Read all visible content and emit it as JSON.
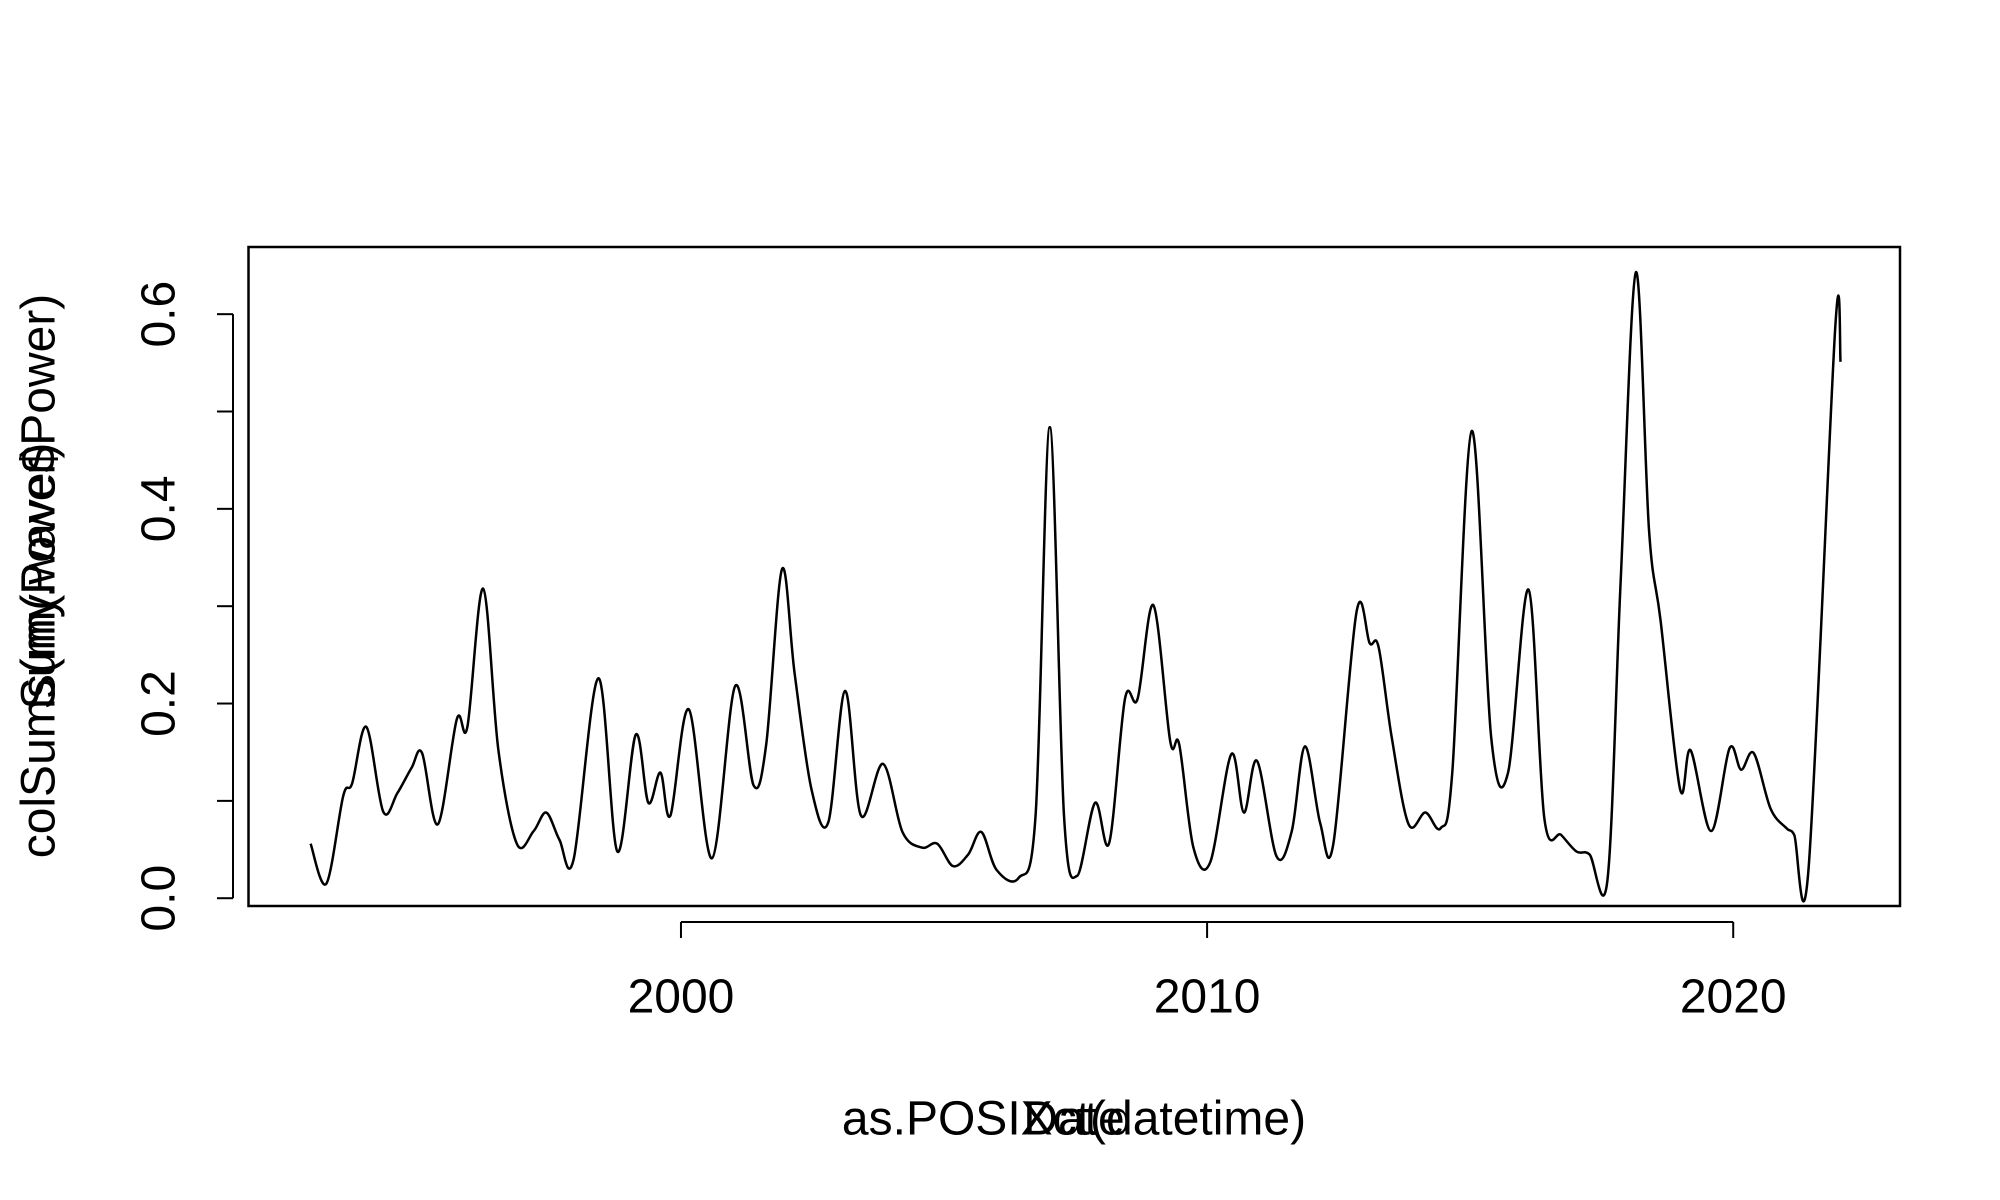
{
  "chart_data": {
    "type": "line",
    "x_labels": [
      "as.POSIXct(datetime)",
      "Date"
    ],
    "y_labels": [
      "colSums(my.wave$Power)",
      "Sum(Power)"
    ],
    "series": [
      {
        "color": "#000000",
        "x": [
          1992.96,
          1993.26,
          1993.58,
          1993.75,
          1994.02,
          1994.34,
          1994.61,
          1994.88,
          1995.08,
          1995.38,
          1995.74,
          1995.94,
          1996.24,
          1996.53,
          1996.88,
          1997.2,
          1997.44,
          1997.69,
          1997.96,
          1998.43,
          1998.79,
          1999.14,
          1999.38,
          1999.61,
          1999.8,
          2000.15,
          2000.59,
          2001.03,
          2001.38,
          2001.62,
          2001.92,
          2002.16,
          2002.48,
          2002.8,
          2003.12,
          2003.42,
          2003.84,
          2004.21,
          2004.58,
          2004.87,
          2005.17,
          2005.46,
          2005.71,
          2006.0,
          2006.42,
          2006.74,
          2007.01,
          2007.28,
          2007.53,
          2007.87,
          2008.14,
          2008.44,
          2008.68,
          2008.98,
          2009.3,
          2009.47,
          2009.74,
          2010.06,
          2010.46,
          2010.7,
          2010.95,
          2011.32,
          2011.61,
          2011.86,
          2012.15,
          2012.4,
          2012.84,
          2013.09,
          2013.26,
          2013.51,
          2013.83,
          2014.15,
          2014.44,
          2014.66,
          2015.03,
          2015.4,
          2015.72,
          2016.11,
          2016.41,
          2016.73,
          2017.02,
          2017.27,
          2017.61,
          2017.86,
          2018.15,
          2018.4,
          2018.62,
          2018.99,
          2019.19,
          2019.58,
          2019.93,
          2020.15,
          2020.39,
          2020.71,
          2021.01,
          2021.16,
          2021.43,
          2021.94,
          2022.04
        ],
        "values": [
          0.056,
          0.015,
          0.105,
          0.118,
          0.176,
          0.089,
          0.108,
          0.134,
          0.149,
          0.076,
          0.184,
          0.176,
          0.318,
          0.152,
          0.056,
          0.069,
          0.088,
          0.06,
          0.04,
          0.226,
          0.048,
          0.168,
          0.098,
          0.129,
          0.085,
          0.194,
          0.041,
          0.218,
          0.116,
          0.158,
          0.338,
          0.231,
          0.112,
          0.078,
          0.213,
          0.085,
          0.138,
          0.068,
          0.052,
          0.056,
          0.033,
          0.045,
          0.068,
          0.029,
          0.021,
          0.085,
          0.484,
          0.085,
          0.023,
          0.098,
          0.057,
          0.205,
          0.205,
          0.301,
          0.161,
          0.158,
          0.052,
          0.037,
          0.148,
          0.088,
          0.141,
          0.043,
          0.069,
          0.156,
          0.077,
          0.056,
          0.294,
          0.262,
          0.258,
          0.165,
          0.076,
          0.088,
          0.072,
          0.129,
          0.48,
          0.165,
          0.129,
          0.317,
          0.082,
          0.065,
          0.048,
          0.045,
          0.019,
          0.325,
          0.643,
          0.378,
          0.285,
          0.112,
          0.152,
          0.069,
          0.154,
          0.132,
          0.149,
          0.092,
          0.072,
          0.065,
          0.029,
          0.587,
          0.551
        ]
      }
    ],
    "xlim": [
      1991.78,
      2023.17
    ],
    "xticks": [
      2000,
      2010,
      2020
    ],
    "ylim": [
      -0.008,
      0.669
    ],
    "yticks": [
      {
        "value": 0,
        "label": "0.0"
      },
      0.2,
      0.4,
      0.6
    ],
    "yminor_ticks": [
      0.1,
      0.3,
      0.5
    ]
  }
}
